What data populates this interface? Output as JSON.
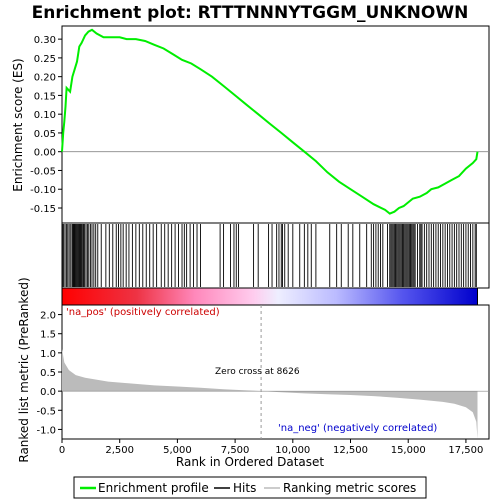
{
  "chart_data": {
    "type": "line",
    "title": "Enrichment plot: RTTTNNNYTGGM_UNKNOWN",
    "xlabel": "Rank in Ordered Dataset",
    "top_ylabel": "Enrichment score (ES)",
    "bottom_ylabel": "Ranked list metric (PreRanked)",
    "xlim": [
      0,
      18500
    ],
    "x_ticks": [
      0,
      2500,
      5000,
      7500,
      10000,
      12500,
      15000,
      17500
    ],
    "x_tick_labels": [
      "0",
      "2,500",
      "5,000",
      "7,500",
      "10,000",
      "12,500",
      "15,000",
      "17,500"
    ],
    "es_ylim": [
      -0.19,
      0.335
    ],
    "es_ticks": [
      0.3,
      0.25,
      0.2,
      0.15,
      0.1,
      0.05,
      0.0,
      -0.05,
      -0.1,
      -0.15
    ],
    "es_tick_labels": [
      "0.30",
      "0.25",
      "0.20",
      "0.15",
      "0.10",
      "0.05",
      "0.00",
      "-0.05",
      "-0.10",
      "-0.15"
    ],
    "metric_ylim": [
      -1.25,
      2.25
    ],
    "metric_ticks": [
      2.0,
      1.5,
      1.0,
      0.5,
      0.0,
      -0.5,
      -1.0
    ],
    "metric_tick_labels": [
      "2.0",
      "1.5",
      "1.0",
      "0.5",
      "0.0",
      "-0.5",
      "-1.0"
    ],
    "series": [
      {
        "name": "Enrichment profile",
        "color": "#00ee00",
        "points": [
          [
            0,
            0.0
          ],
          [
            50,
            0.05
          ],
          [
            100,
            0.08
          ],
          [
            150,
            0.12
          ],
          [
            200,
            0.17
          ],
          [
            350,
            0.16
          ],
          [
            450,
            0.2
          ],
          [
            550,
            0.22
          ],
          [
            650,
            0.24
          ],
          [
            750,
            0.28
          ],
          [
            850,
            0.29
          ],
          [
            1000,
            0.31
          ],
          [
            1150,
            0.32
          ],
          [
            1300,
            0.325
          ],
          [
            1500,
            0.315
          ],
          [
            1800,
            0.305
          ],
          [
            2200,
            0.305
          ],
          [
            2500,
            0.305
          ],
          [
            2800,
            0.3
          ],
          [
            3200,
            0.3
          ],
          [
            3600,
            0.295
          ],
          [
            4000,
            0.285
          ],
          [
            4400,
            0.275
          ],
          [
            4800,
            0.26
          ],
          [
            5200,
            0.245
          ],
          [
            5600,
            0.235
          ],
          [
            6000,
            0.22
          ],
          [
            6500,
            0.2
          ],
          [
            7000,
            0.175
          ],
          [
            7500,
            0.15
          ],
          [
            8000,
            0.125
          ],
          [
            8500,
            0.1
          ],
          [
            9000,
            0.075
          ],
          [
            9500,
            0.05
          ],
          [
            10000,
            0.025
          ],
          [
            10500,
            0.0
          ],
          [
            11000,
            -0.025
          ],
          [
            11500,
            -0.055
          ],
          [
            12000,
            -0.08
          ],
          [
            12500,
            -0.1
          ],
          [
            13000,
            -0.12
          ],
          [
            13500,
            -0.14
          ],
          [
            14000,
            -0.155
          ],
          [
            14200,
            -0.165
          ],
          [
            14400,
            -0.16
          ],
          [
            14600,
            -0.15
          ],
          [
            14800,
            -0.145
          ],
          [
            15000,
            -0.135
          ],
          [
            15200,
            -0.125
          ],
          [
            15500,
            -0.12
          ],
          [
            15800,
            -0.11
          ],
          [
            16000,
            -0.1
          ],
          [
            16300,
            -0.095
          ],
          [
            16600,
            -0.085
          ],
          [
            16900,
            -0.075
          ],
          [
            17200,
            -0.065
          ],
          [
            17500,
            -0.045
          ],
          [
            17800,
            -0.03
          ],
          [
            17950,
            -0.02
          ],
          [
            18000,
            0.0
          ]
        ]
      }
    ],
    "hits_ranks": [
      20,
      70,
      130,
      190,
      250,
      310,
      380,
      440,
      480,
      520,
      560,
      600,
      640,
      680,
      720,
      760,
      800,
      840,
      880,
      930,
      980,
      1040,
      1100,
      1160,
      1230,
      1300,
      1380,
      1460,
      1550,
      1700,
      1900,
      2050,
      2200,
      2350,
      2450,
      2550,
      2650,
      2780,
      2900,
      3050,
      3200,
      3350,
      3500,
      3650,
      3800,
      3950,
      4100,
      4300,
      4450,
      4600,
      4750,
      4900,
      5050,
      5200,
      5300,
      5400,
      5550,
      5700,
      5850,
      6000,
      6850,
      7000,
      7300,
      7450,
      7550,
      7650,
      8300,
      8500,
      8950,
      9100,
      9300,
      9400,
      9500,
      9550,
      9650,
      9800,
      10000,
      10300,
      10500,
      10650,
      10800,
      11000,
      11600,
      11900,
      12100,
      12400,
      12600,
      12900,
      13200,
      13400,
      13500,
      13600,
      13700,
      13800,
      13900,
      14100,
      14200,
      14250,
      14300,
      14350,
      14400,
      14450,
      14500,
      14550,
      14600,
      14650,
      14700,
      14750,
      14800,
      14850,
      14900,
      14950,
      15000,
      15050,
      15100,
      15150,
      15200,
      15250,
      15300,
      15400,
      15500,
      15550,
      15600,
      15700,
      15800,
      15900,
      16000,
      16100,
      16200,
      16300,
      16400,
      16500,
      16600,
      16700,
      16800,
      16900,
      17000,
      17100,
      17200,
      17300,
      17400,
      17500,
      17600,
      17700,
      17800,
      17900,
      17950
    ],
    "metric_profile": [
      [
        0,
        1.1
      ],
      [
        100,
        0.75
      ],
      [
        300,
        0.55
      ],
      [
        600,
        0.42
      ],
      [
        1000,
        0.35
      ],
      [
        2000,
        0.25
      ],
      [
        3000,
        0.2
      ],
      [
        4000,
        0.15
      ],
      [
        5000,
        0.12
      ],
      [
        6000,
        0.09
      ],
      [
        7000,
        0.05
      ],
      [
        8000,
        0.02
      ],
      [
        8626,
        0.0
      ],
      [
        9500,
        -0.03
      ],
      [
        10500,
        -0.06
      ],
      [
        11500,
        -0.08
      ],
      [
        12500,
        -0.1
      ],
      [
        13500,
        -0.13
      ],
      [
        14500,
        -0.17
      ],
      [
        15500,
        -0.22
      ],
      [
        16500,
        -0.28
      ],
      [
        17000,
        -0.33
      ],
      [
        17500,
        -0.42
      ],
      [
        17800,
        -0.55
      ],
      [
        17950,
        -0.8
      ],
      [
        18000,
        -1.25
      ]
    ],
    "zero_cross_rank": 8626,
    "annotations": {
      "pos_label": "'na_pos' (positively correlated)",
      "neg_label": "'na_neg' (negatively correlated)",
      "zero_label": "Zero cross at 8626"
    },
    "legend": {
      "placement": "bottom",
      "items": [
        {
          "label": "Enrichment profile",
          "color": "#00ee00"
        },
        {
          "label": "Hits",
          "color": "#000000"
        },
        {
          "label": "Ranking metric scores",
          "color": "#bbbbbb"
        }
      ]
    }
  }
}
